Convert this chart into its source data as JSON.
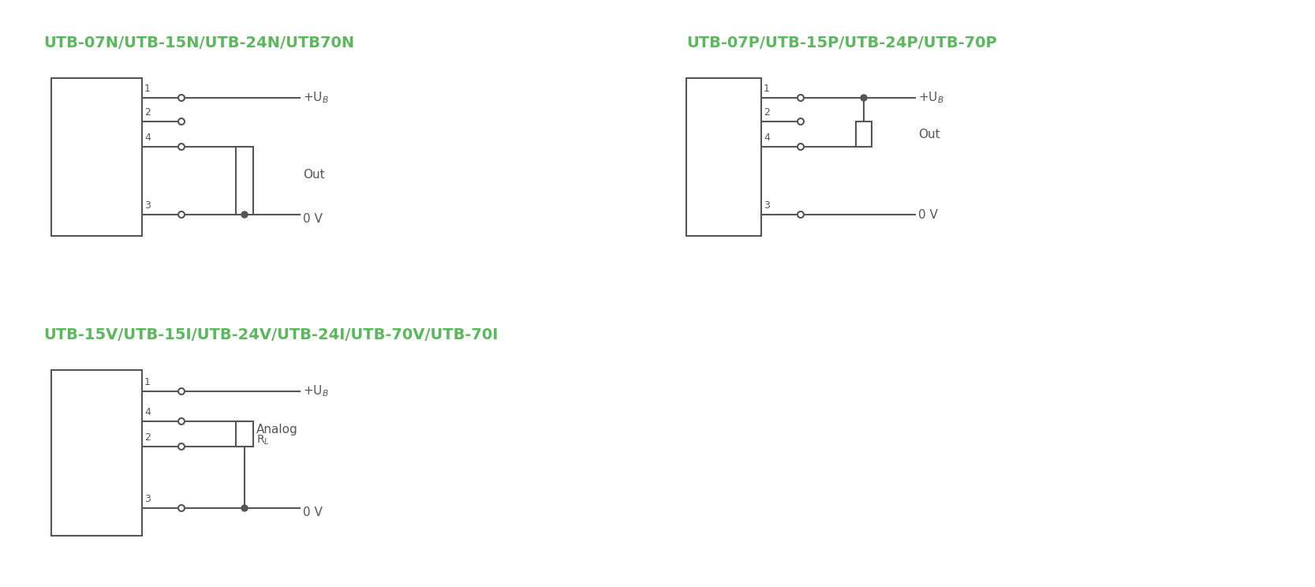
{
  "bg_color": "#ffffff",
  "line_color": "#555555",
  "green_color": "#5cb85c",
  "title1": "UTB-07N/UTB-15N/UTB-24N/UTB70N",
  "title2": "UTB-07P/UTB-15P/UTB-24P/UTB-70P",
  "title3": "UTB-15V/UTB-15I/UTB-24V/UTB-24I/UTB-70V/UTB-70I",
  "label_UB": "+UB",
  "label_UB_sub": "B",
  "label_Out": "Out",
  "label_0V": "0 V",
  "label_Analog": "Analog",
  "label_RL": "RL",
  "font_title": 14,
  "font_label": 11,
  "font_pin": 9
}
